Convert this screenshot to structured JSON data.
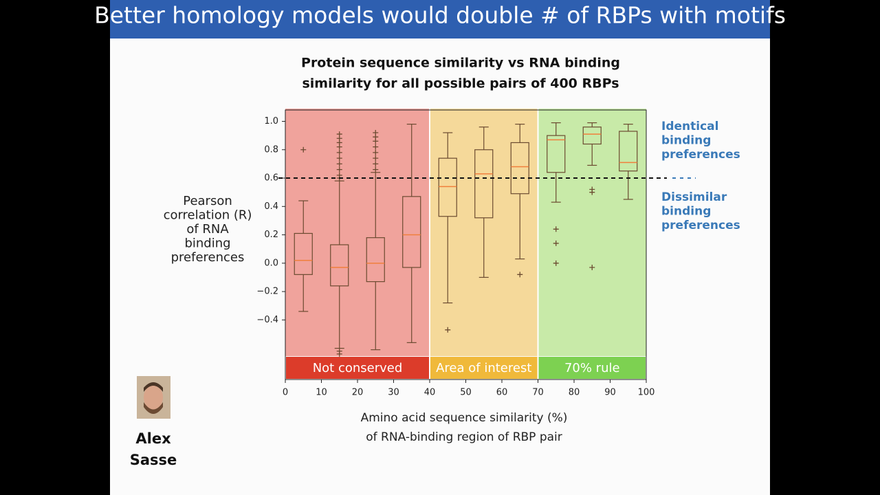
{
  "slide": {
    "title": "Better homology models would double # of RBPs with motifs",
    "author": [
      "Alex",
      "Sasse"
    ]
  },
  "chart_data": {
    "type": "box",
    "title": [
      "Protein sequence similarity vs RNA binding",
      "similarity for all possible pairs of 400 RBPs"
    ],
    "ylabel": [
      "Pearson",
      "correlation (R)",
      "of RNA",
      "binding",
      "preferences"
    ],
    "xlabel": [
      "Amino acid sequence similarity (%)",
      "of RNA-binding region of RBP pair"
    ],
    "xlim": [
      0,
      100
    ],
    "xticks": [
      0,
      10,
      20,
      30,
      40,
      50,
      60,
      70,
      80,
      90,
      100
    ],
    "ylim": [
      -0.82,
      1.08
    ],
    "yticks": [
      {
        "value": 1,
        "label": "1.0"
      },
      0.8,
      0.6,
      0.4,
      0.2,
      {
        "value": 0,
        "label": "0.0"
      },
      {
        "value": -0.2,
        "label": "−0.2"
      },
      {
        "value": -0.4,
        "label": "−0.4"
      }
    ],
    "box_color": "#6b4a30",
    "median_color": "#f07f3c",
    "boxes": [
      {
        "x": 5,
        "whislo": -0.34,
        "q1": -0.08,
        "med": 0.02,
        "q3": 0.21,
        "whishi": 0.44,
        "fliers": [
          0.8
        ]
      },
      {
        "x": 15,
        "whislo": -0.6,
        "q1": -0.16,
        "med": -0.03,
        "q3": 0.13,
        "whishi": 0.58,
        "fliers": [
          0.91,
          0.88,
          0.85,
          0.82,
          0.78,
          0.74,
          0.7,
          0.66,
          0.62,
          0.6,
          -0.62,
          -0.64
        ]
      },
      {
        "x": 25,
        "whislo": -0.61,
        "q1": -0.13,
        "med": 0.0,
        "q3": 0.18,
        "whishi": 0.64,
        "fliers": [
          0.92,
          0.89,
          0.86,
          0.82,
          0.78,
          0.74,
          0.7,
          0.66
        ]
      },
      {
        "x": 35,
        "whislo": -0.56,
        "q1": -0.03,
        "med": 0.2,
        "q3": 0.47,
        "whishi": 0.98,
        "fliers": []
      },
      {
        "x": 45,
        "whislo": -0.28,
        "q1": 0.33,
        "med": 0.54,
        "q3": 0.74,
        "whishi": 0.92,
        "fliers": [
          -0.47
        ]
      },
      {
        "x": 55,
        "whislo": -0.1,
        "q1": 0.32,
        "med": 0.63,
        "q3": 0.8,
        "whishi": 0.96,
        "fliers": []
      },
      {
        "x": 65,
        "whislo": 0.03,
        "q1": 0.49,
        "med": 0.68,
        "q3": 0.85,
        "whishi": 0.98,
        "fliers": [
          -0.08
        ]
      },
      {
        "x": 75,
        "whislo": 0.43,
        "q1": 0.64,
        "med": 0.87,
        "q3": 0.9,
        "whishi": 0.99,
        "fliers": [
          0.24,
          0.14,
          0.0
        ]
      },
      {
        "x": 85,
        "whislo": 0.69,
        "q1": 0.84,
        "med": 0.91,
        "q3": 0.96,
        "whishi": 0.99,
        "fliers": [
          0.52,
          0.5,
          -0.03
        ]
      },
      {
        "x": 95,
        "whislo": 0.45,
        "q1": 0.65,
        "med": 0.71,
        "q3": 0.93,
        "whishi": 0.98,
        "fliers": []
      }
    ],
    "regions": [
      {
        "label": "Not conserved",
        "from": 0,
        "to": 40,
        "color": "#f0a39c",
        "label_color": "#dc3c2a"
      },
      {
        "label": "Area of interest",
        "from": 40,
        "to": 70,
        "color": "#f5d99a",
        "label_color": "#f0b93a"
      },
      {
        "label": "70% rule",
        "from": 70,
        "to": 100,
        "color": "#c8eaa8",
        "label_color": "#7dd151"
      }
    ],
    "hline": 0.6,
    "annotation_color": "#3a7ab8",
    "annotations": [
      [
        "Identical",
        "binding",
        "preferences"
      ],
      [
        "Dissimilar",
        "binding",
        "preferences"
      ]
    ]
  }
}
